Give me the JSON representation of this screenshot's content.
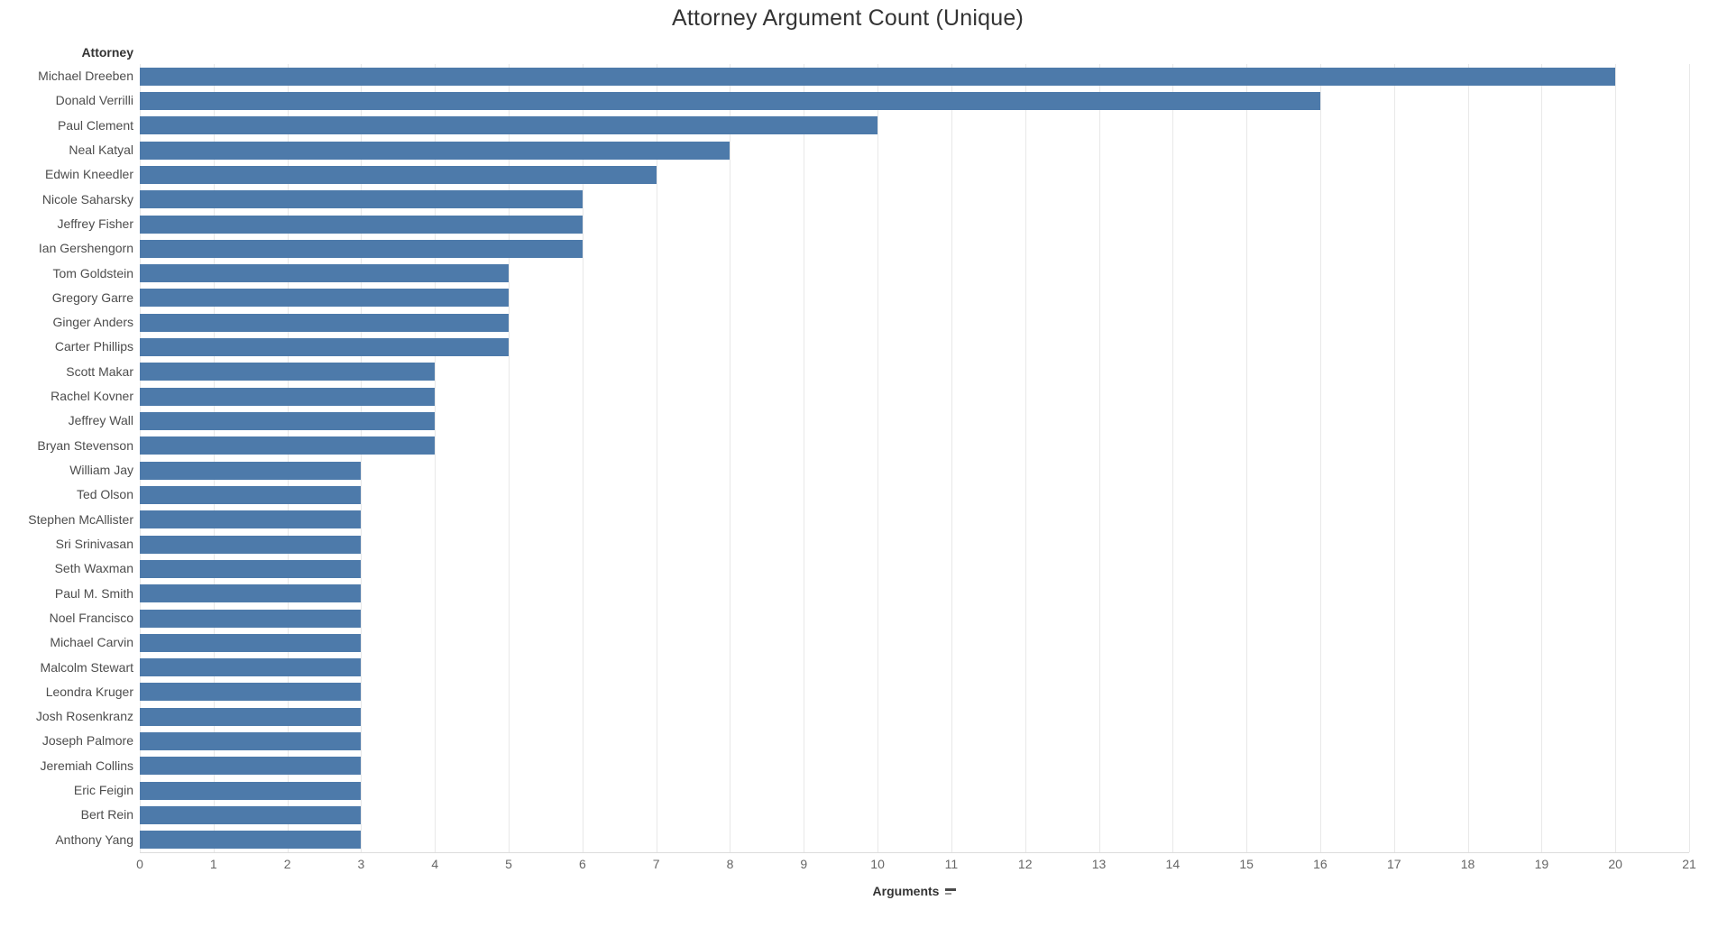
{
  "title": "Attorney Argument Count (Unique)",
  "row_header": "Attorney",
  "axis": {
    "label": "Arguments",
    "sort_icon": "sort-descending",
    "min": 0,
    "max": 21,
    "ticks": [
      "0",
      "1",
      "2",
      "3",
      "4",
      "5",
      "6",
      "7",
      "8",
      "9",
      "10",
      "11",
      "12",
      "13",
      "14",
      "15",
      "16",
      "17",
      "18",
      "19",
      "20",
      "21"
    ]
  },
  "colors": {
    "bar": "#4d7aaa",
    "gridline": "#e8e8e8",
    "title_text": "#343434",
    "label_text": "#4d4d4d",
    "tick_text": "#666666"
  },
  "chart_data": {
    "type": "bar",
    "orientation": "horizontal",
    "title": "Attorney Argument Count (Unique)",
    "xlabel": "Arguments",
    "ylabel": "Attorney",
    "xlim": [
      0,
      21
    ],
    "grid": true,
    "categories": [
      "Michael Dreeben",
      "Donald Verrilli",
      "Paul Clement",
      "Neal Katyal",
      "Edwin Kneedler",
      "Nicole Saharsky",
      "Jeffrey Fisher",
      "Ian Gershengorn",
      "Tom Goldstein",
      "Gregory Garre",
      "Ginger Anders",
      "Carter Phillips",
      "Scott Makar",
      "Rachel Kovner",
      "Jeffrey Wall",
      "Bryan Stevenson",
      "William Jay",
      "Ted Olson",
      "Stephen McAllister",
      "Sri Srinivasan",
      "Seth Waxman",
      "Paul M. Smith",
      "Noel Francisco",
      "Michael Carvin",
      "Malcolm Stewart",
      "Leondra Kruger",
      "Josh Rosenkranz",
      "Joseph Palmore",
      "Jeremiah Collins",
      "Eric Feigin",
      "Bert Rein",
      "Anthony Yang"
    ],
    "values": [
      20,
      16,
      10,
      8,
      7,
      6,
      6,
      6,
      5,
      5,
      5,
      5,
      4,
      4,
      4,
      4,
      3,
      3,
      3,
      3,
      3,
      3,
      3,
      3,
      3,
      3,
      3,
      3,
      3,
      3,
      3,
      3
    ]
  }
}
